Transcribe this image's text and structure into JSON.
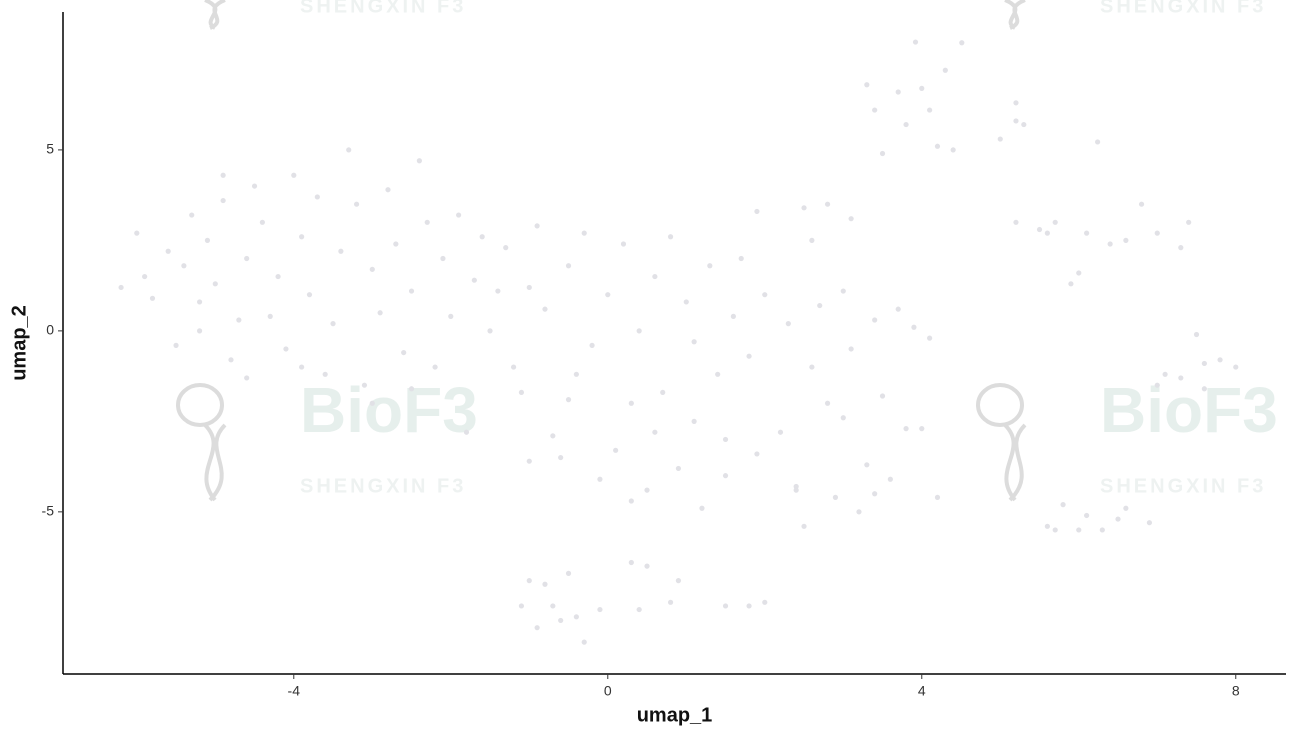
{
  "chart_data": {
    "type": "scatter",
    "x_label": "umap_1",
    "y_label": "umap_2",
    "watermark_texts": [
      "BioF3",
      "SHENGXIN F3"
    ],
    "color": "#e1e1e6",
    "xlim": [
      -6.94,
      8.64
    ],
    "ylim": [
      -9.48,
      8.81
    ],
    "xticks": [
      -4,
      0,
      4,
      8
    ],
    "yticks": [
      -5,
      0,
      5
    ],
    "grid": false,
    "x": [
      -6.2,
      -6.0,
      -5.9,
      -5.8,
      -5.6,
      -5.5,
      -5.4,
      -5.3,
      -5.2,
      -5.1,
      -5.0,
      -4.9,
      -4.8,
      -4.7,
      -4.6,
      -4.5,
      -4.4,
      -4.3,
      -4.2,
      -4.1,
      -4.0,
      -3.9,
      -3.8,
      -3.7,
      -3.6,
      -3.5,
      -3.4,
      -3.3,
      -3.2,
      -3.1,
      -3.0,
      -2.9,
      -2.8,
      -2.7,
      -2.6,
      -2.5,
      -2.4,
      -2.3,
      -2.2,
      -2.1,
      -2.0,
      -1.9,
      -1.8,
      -1.7,
      -1.6,
      -1.5,
      -4.6,
      -3.9,
      -5.2,
      -4.9,
      -2.5,
      -3.0,
      -1.4,
      -1.3,
      -1.2,
      -1.1,
      -1.0,
      -0.9,
      -0.8,
      -0.7,
      -0.6,
      -0.5,
      -0.4,
      -0.3,
      -0.2,
      -0.1,
      0.0,
      0.1,
      0.2,
      0.3,
      0.4,
      0.5,
      0.6,
      0.7,
      0.8,
      0.9,
      1.0,
      1.1,
      1.2,
      1.3,
      1.4,
      1.5,
      1.6,
      1.7,
      1.8,
      1.9,
      2.0,
      1.9,
      -0.5,
      0.3,
      1.1,
      -1.0,
      0.6,
      1.5,
      -1.1,
      -1.0,
      -0.9,
      -0.8,
      -0.7,
      -0.6,
      -0.5,
      -0.4,
      -0.3,
      -0.1,
      0.3,
      0.4,
      0.5,
      0.8,
      0.9,
      1.5,
      1.8,
      2.0,
      2.2,
      2.3,
      2.4,
      2.5,
      2.5,
      2.6,
      2.7,
      2.8,
      2.8,
      2.9,
      3.0,
      3.0,
      3.1,
      3.2,
      3.3,
      3.4,
      3.5,
      3.6,
      3.7,
      3.8,
      3.9,
      4.0,
      4.1,
      4.2,
      2.6,
      3.1,
      2.4,
      3.4,
      3.3,
      3.4,
      3.5,
      3.7,
      3.8,
      3.92,
      4.0,
      4.1,
      4.2,
      4.4,
      4.51,
      4.3,
      5.0,
      5.2,
      5.2,
      5.3,
      5.2,
      5.5,
      5.6,
      5.7,
      5.9,
      6.0,
      6.1,
      6.24,
      6.4,
      6.6,
      6.8,
      7.0,
      7.3,
      7.4,
      5.8,
      5.6,
      5.7,
      6.0,
      6.1,
      6.3,
      6.5,
      6.6,
      6.9,
      7.0,
      7.1,
      7.3,
      7.5,
      7.6,
      7.6,
      7.8,
      8.0
    ],
    "values": [
      1.2,
      2.7,
      1.5,
      0.9,
      2.2,
      -0.4,
      1.8,
      3.2,
      0.8,
      2.5,
      1.3,
      3.6,
      -0.8,
      0.3,
      2.0,
      4.0,
      3.0,
      0.4,
      1.5,
      -0.5,
      4.3,
      2.6,
      1.0,
      3.7,
      -1.2,
      0.2,
      2.2,
      5.0,
      3.5,
      -1.5,
      1.7,
      0.5,
      3.9,
      2.4,
      -0.6,
      1.1,
      4.7,
      3.0,
      -1.0,
      2.0,
      0.4,
      3.2,
      -2.8,
      1.4,
      2.6,
      0.0,
      -1.3,
      -1.0,
      0.0,
      4.3,
      -1.6,
      -2.0,
      1.1,
      2.3,
      -1.0,
      -1.7,
      1.2,
      2.9,
      0.6,
      -2.9,
      -3.5,
      1.8,
      -1.2,
      2.7,
      -0.4,
      -4.1,
      1.0,
      -3.3,
      2.4,
      -2.0,
      0.0,
      -4.4,
      1.5,
      -1.7,
      2.6,
      -3.8,
      0.8,
      -2.5,
      -4.9,
      1.8,
      -1.2,
      -3.0,
      0.4,
      2.0,
      -0.7,
      -3.4,
      1.0,
      3.3,
      -1.9,
      -4.7,
      -0.3,
      -3.6,
      -2.8,
      -4.0,
      -7.6,
      -6.9,
      -8.2,
      -7.0,
      -7.6,
      -8.0,
      -6.7,
      -7.9,
      -8.6,
      -7.7,
      -6.4,
      -7.7,
      -6.5,
      -7.5,
      -6.9,
      -7.6,
      -7.6,
      -7.5,
      -2.8,
      0.2,
      -4.3,
      3.4,
      -5.4,
      -1.0,
      0.7,
      -2.0,
      3.5,
      -4.6,
      1.1,
      -2.4,
      -0.5,
      -5.0,
      -3.7,
      0.3,
      -1.8,
      -4.1,
      0.6,
      -2.7,
      0.1,
      -2.7,
      -0.2,
      -4.6,
      2.5,
      3.1,
      -4.4,
      -4.5,
      6.8,
      6.1,
      4.9,
      6.6,
      5.7,
      7.98,
      6.7,
      6.1,
      5.1,
      5.0,
      7.96,
      7.2,
      5.3,
      6.3,
      5.8,
      5.7,
      3.0,
      2.8,
      2.7,
      3.0,
      1.3,
      1.6,
      2.7,
      5.22,
      2.4,
      2.5,
      3.5,
      2.7,
      2.3,
      3.0,
      -4.8,
      -5.4,
      -5.5,
      -5.5,
      -5.1,
      -5.5,
      -5.2,
      -4.9,
      -5.3,
      -1.5,
      -1.2,
      -1.3,
      -0.1,
      -0.9,
      -1.6,
      -0.8,
      -1.0
    ]
  }
}
